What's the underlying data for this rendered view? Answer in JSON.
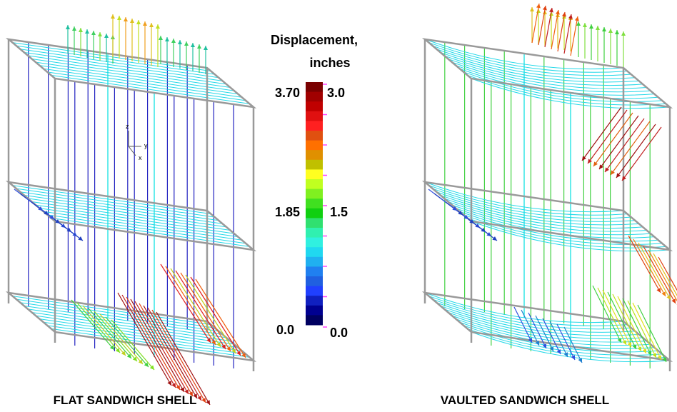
{
  "colorbar": {
    "title_lines": [
      "Displacement,",
      "inches"
    ],
    "left_labels": [
      "3.70",
      "1.85",
      "0.0"
    ],
    "right_labels": [
      "3.0",
      "1.5",
      "0.0"
    ]
  },
  "triad": {
    "labels": [
      "z",
      "y",
      "x"
    ]
  },
  "panels": [
    {
      "caption": "FLAT SANDWICH SHELL"
    },
    {
      "caption": "VAULTED SANDWICH SHELL"
    }
  ]
}
